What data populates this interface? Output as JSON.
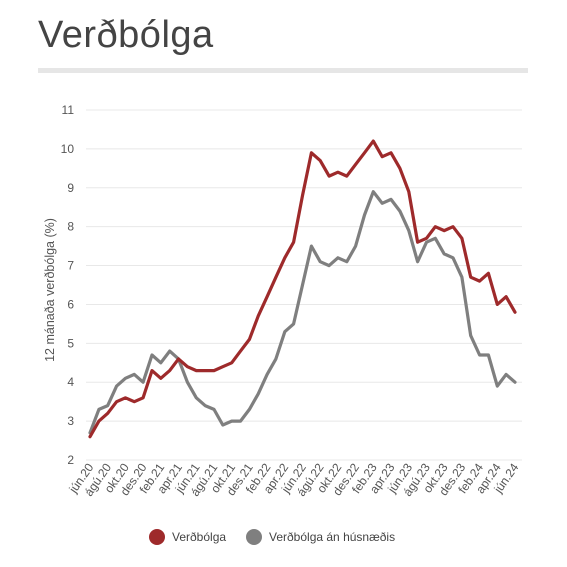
{
  "title": "Verðbólga",
  "chart_data": {
    "type": "line",
    "ylabel": "12 mánaða verðbólga (%)",
    "xlabel": "",
    "ylim": [
      2,
      11
    ],
    "yticks": [
      2,
      3,
      4,
      5,
      6,
      7,
      8,
      9,
      10,
      11
    ],
    "grid": true,
    "legend": "bottom",
    "x_tick_labels": [
      "jún.20",
      "ágú.20",
      "okt.20",
      "des.20",
      "feb.21",
      "apr.21",
      "jún.21",
      "ágú.21",
      "okt.21",
      "des.21",
      "feb.22",
      "apr.22",
      "jún.22",
      "ágú.22",
      "okt.22",
      "des.22",
      "feb.23",
      "apr.23",
      "jún.23",
      "ágú.23",
      "okt.23",
      "des.23",
      "feb.24",
      "apr.24",
      "jún.24"
    ],
    "series": [
      {
        "name": "Verðbólga",
        "color": "#9e2a2b",
        "values": [
          2.6,
          3.0,
          3.2,
          3.5,
          3.6,
          3.5,
          3.6,
          4.3,
          4.1,
          4.3,
          4.6,
          4.4,
          4.3,
          4.3,
          4.3,
          4.4,
          4.5,
          4.8,
          5.1,
          5.7,
          6.2,
          6.7,
          7.2,
          7.6,
          8.8,
          9.9,
          9.7,
          9.3,
          9.4,
          9.3,
          9.6,
          9.9,
          10.2,
          9.8,
          9.9,
          9.5,
          8.9,
          7.6,
          7.7,
          8.0,
          7.9,
          8.0,
          7.7,
          6.7,
          6.6,
          6.8,
          6.0,
          6.2,
          5.8
        ]
      },
      {
        "name": "Verðbólga án húsnæðis",
        "color": "#7f7f7f",
        "values": [
          2.7,
          3.3,
          3.4,
          3.9,
          4.1,
          4.2,
          4.0,
          4.7,
          4.5,
          4.8,
          4.6,
          4.0,
          3.6,
          3.4,
          3.3,
          2.9,
          3.0,
          3.0,
          3.3,
          3.7,
          4.2,
          4.6,
          5.3,
          5.5,
          6.5,
          7.5,
          7.1,
          7.0,
          7.2,
          7.1,
          7.5,
          8.3,
          8.9,
          8.6,
          8.7,
          8.4,
          7.9,
          7.1,
          7.6,
          7.7,
          7.3,
          7.2,
          6.7,
          5.2,
          4.7,
          4.7,
          3.9,
          4.2,
          4.0
        ]
      }
    ]
  }
}
